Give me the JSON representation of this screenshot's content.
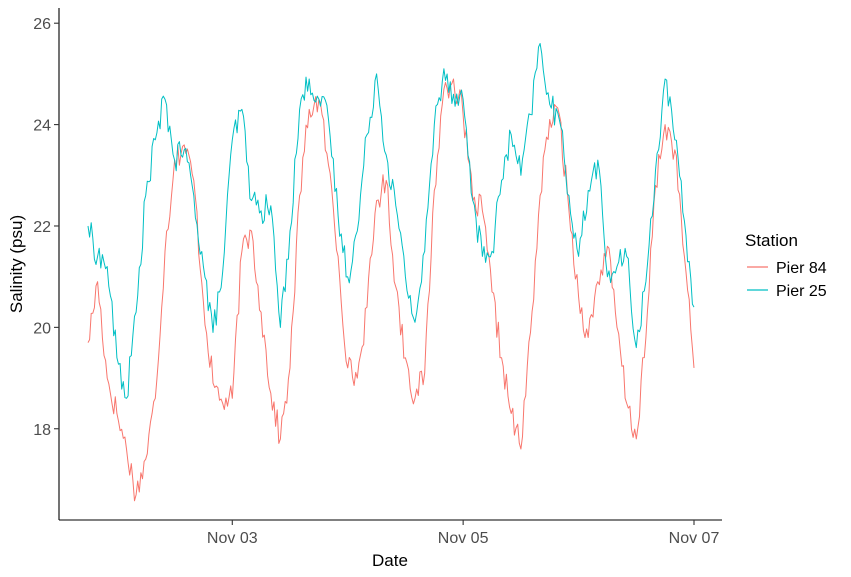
{
  "chart_data": {
    "type": "line",
    "title": "",
    "xlabel": "Date",
    "ylabel": "Salinity (psu)",
    "x_ticks": [
      "Nov 03",
      "Nov 05",
      "Nov 07"
    ],
    "y_ticks": [
      18,
      20,
      22,
      24,
      26
    ],
    "xlim": [
      "2023-11-01T18:00",
      "2023-11-07T00:00"
    ],
    "ylim": [
      16.2,
      26.3
    ],
    "grid": false,
    "legend": {
      "title": "Station",
      "position": "right"
    },
    "series": [
      {
        "name": "Pier 84",
        "color": "#F8766D",
        "x": [
          "2023-11-01T18:00",
          "2023-11-01T20:00",
          "2023-11-01T22:00",
          "2023-11-02T00:00",
          "2023-11-02T02:00",
          "2023-11-02T04:00",
          "2023-11-02T06:00",
          "2023-11-02T08:00",
          "2023-11-02T10:00",
          "2023-11-02T12:00",
          "2023-11-02T14:00",
          "2023-11-02T16:00",
          "2023-11-02T18:00",
          "2023-11-02T20:00",
          "2023-11-02T22:00",
          "2023-11-03T00:00",
          "2023-11-03T02:00",
          "2023-11-03T04:00",
          "2023-11-03T06:00",
          "2023-11-03T08:00",
          "2023-11-03T10:00",
          "2023-11-03T12:00",
          "2023-11-03T14:00",
          "2023-11-03T16:00",
          "2023-11-03T18:00",
          "2023-11-03T20:00",
          "2023-11-03T22:00",
          "2023-11-04T00:00",
          "2023-11-04T02:00",
          "2023-11-04T04:00",
          "2023-11-04T06:00",
          "2023-11-04T08:00",
          "2023-11-04T10:00",
          "2023-11-04T12:00",
          "2023-11-04T14:00",
          "2023-11-04T16:00",
          "2023-11-04T18:00",
          "2023-11-04T20:00",
          "2023-11-04T22:00",
          "2023-11-05T00:00",
          "2023-11-05T02:00",
          "2023-11-05T04:00",
          "2023-11-05T06:00",
          "2023-11-05T08:00",
          "2023-11-05T10:00",
          "2023-11-05T12:00",
          "2023-11-05T14:00",
          "2023-11-05T16:00",
          "2023-11-05T18:00",
          "2023-11-05T20:00",
          "2023-11-05T22:00",
          "2023-11-06T00:00",
          "2023-11-06T02:00",
          "2023-11-06T04:00",
          "2023-11-06T06:00",
          "2023-11-06T08:00",
          "2023-11-06T10:00",
          "2023-11-06T12:00",
          "2023-11-06T14:00",
          "2023-11-06T16:00",
          "2023-11-06T18:00",
          "2023-11-06T20:00",
          "2023-11-06T22:00",
          "2023-11-07T00:00"
        ],
        "y": [
          19.7,
          20.9,
          19.0,
          18.3,
          17.6,
          16.7,
          17.4,
          18.6,
          21.5,
          23.3,
          23.6,
          22.9,
          20.5,
          18.9,
          18.5,
          18.6,
          21.5,
          21.9,
          20.3,
          18.7,
          17.8,
          19.2,
          22.6,
          24.3,
          24.5,
          23.2,
          21.4,
          19.2,
          19.0,
          20.4,
          22.5,
          22.9,
          20.8,
          19.4,
          18.6,
          19.1,
          22.7,
          24.7,
          24.9,
          24.2,
          22.5,
          22.3,
          20.7,
          19.4,
          18.3,
          17.6,
          19.9,
          22.6,
          24.1,
          24.2,
          22.3,
          20.6,
          19.8,
          20.9,
          21.6,
          20.0,
          18.5,
          17.8,
          19.8,
          22.8,
          24.0,
          23.5,
          21.4,
          19.2
        ]
      },
      {
        "name": "Pier 25",
        "color": "#00BFC4",
        "x": [
          "2023-11-01T18:00",
          "2023-11-01T20:00",
          "2023-11-01T22:00",
          "2023-11-02T00:00",
          "2023-11-02T02:00",
          "2023-11-02T04:00",
          "2023-11-02T06:00",
          "2023-11-02T08:00",
          "2023-11-02T10:00",
          "2023-11-02T12:00",
          "2023-11-02T14:00",
          "2023-11-02T16:00",
          "2023-11-02T18:00",
          "2023-11-02T20:00",
          "2023-11-02T22:00",
          "2023-11-03T00:00",
          "2023-11-03T02:00",
          "2023-11-03T04:00",
          "2023-11-03T06:00",
          "2023-11-03T08:00",
          "2023-11-03T10:00",
          "2023-11-03T12:00",
          "2023-11-03T14:00",
          "2023-11-03T16:00",
          "2023-11-03T18:00",
          "2023-11-03T20:00",
          "2023-11-03T22:00",
          "2023-11-04T00:00",
          "2023-11-04T02:00",
          "2023-11-04T04:00",
          "2023-11-04T06:00",
          "2023-11-04T08:00",
          "2023-11-04T10:00",
          "2023-11-04T12:00",
          "2023-11-04T14:00",
          "2023-11-04T16:00",
          "2023-11-04T18:00",
          "2023-11-04T20:00",
          "2023-11-04T22:00",
          "2023-11-05T00:00",
          "2023-11-05T02:00",
          "2023-11-05T04:00",
          "2023-11-05T06:00",
          "2023-11-05T08:00",
          "2023-11-05T10:00",
          "2023-11-05T12:00",
          "2023-11-05T14:00",
          "2023-11-05T16:00",
          "2023-11-05T18:00",
          "2023-11-05T20:00",
          "2023-11-05T22:00",
          "2023-11-06T00:00",
          "2023-11-06T02:00",
          "2023-11-06T04:00",
          "2023-11-06T06:00",
          "2023-11-06T08:00",
          "2023-11-06T10:00",
          "2023-11-06T12:00",
          "2023-11-06T14:00",
          "2023-11-06T16:00",
          "2023-11-06T18:00",
          "2023-11-06T20:00",
          "2023-11-06T22:00",
          "2023-11-07T00:00"
        ],
        "y": [
          22.0,
          21.4,
          21.2,
          19.4,
          18.6,
          20.3,
          22.6,
          23.7,
          24.5,
          23.3,
          23.5,
          22.6,
          21.2,
          19.9,
          21.1,
          23.7,
          24.3,
          22.5,
          22.3,
          22.4,
          20.0,
          21.9,
          24.3,
          24.9,
          24.5,
          24.1,
          22.2,
          21.0,
          21.9,
          23.8,
          25.0,
          23.4,
          22.4,
          21.0,
          20.1,
          21.5,
          24.0,
          25.1,
          24.6,
          24.5,
          22.5,
          21.4,
          21.5,
          22.9,
          23.8,
          23.0,
          24.2,
          25.6,
          24.4,
          24.1,
          22.6,
          21.4,
          22.7,
          23.3,
          21.0,
          21.2,
          21.4,
          19.6,
          20.9,
          23.1,
          24.9,
          23.7,
          22.1,
          20.4
        ]
      }
    ]
  }
}
